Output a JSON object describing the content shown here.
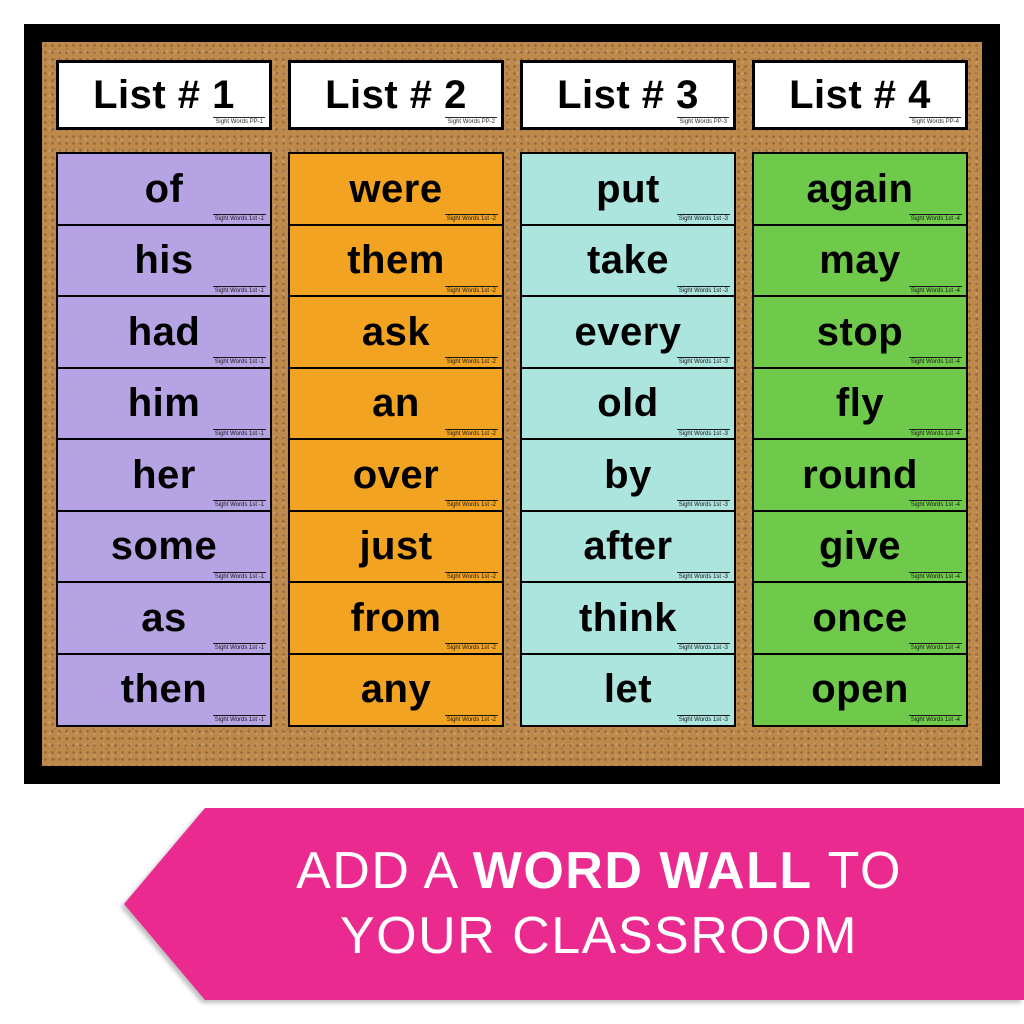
{
  "board": {
    "frame_color": "#000000",
    "cork_color": "#bd8a4c",
    "columns": [
      {
        "header": {
          "label": "List # 1",
          "sub": "Sight Words PP-1"
        },
        "color": "#b6a3e3",
        "card_sub": "Sight Words 1st -1",
        "words": [
          "of",
          "his",
          "had",
          "him",
          "her",
          "some",
          "as",
          "then"
        ]
      },
      {
        "header": {
          "label": "List # 2",
          "sub": "Sight Words PP-2"
        },
        "color": "#f2a321",
        "card_sub": "Sight Words 1st -2",
        "words": [
          "were",
          "them",
          "ask",
          "an",
          "over",
          "just",
          "from",
          "any"
        ]
      },
      {
        "header": {
          "label": "List # 3",
          "sub": "Sight Words PP-3"
        },
        "color": "#ace4de",
        "card_sub": "Sight Words 1st -3",
        "words": [
          "put",
          "take",
          "every",
          "old",
          "by",
          "after",
          "think",
          "let"
        ]
      },
      {
        "header": {
          "label": "List # 4",
          "sub": "Sight Words PP-4"
        },
        "color": "#6fc94a",
        "card_sub": "Sight Words 1st -4",
        "words": [
          "again",
          "may",
          "stop",
          "fly",
          "round",
          "give",
          "once",
          "open"
        ]
      }
    ]
  },
  "banner": {
    "bg_color": "#ea2a8f",
    "text_color": "#ffffff",
    "line1_pre": "ADD A ",
    "line1_bold": "WORD WALL",
    "line1_post": " TO",
    "line2": "YOUR CLASSROOM"
  },
  "typography": {
    "header_fontsize": 40,
    "word_fontsize": 40,
    "banner_fontsize": 52
  }
}
